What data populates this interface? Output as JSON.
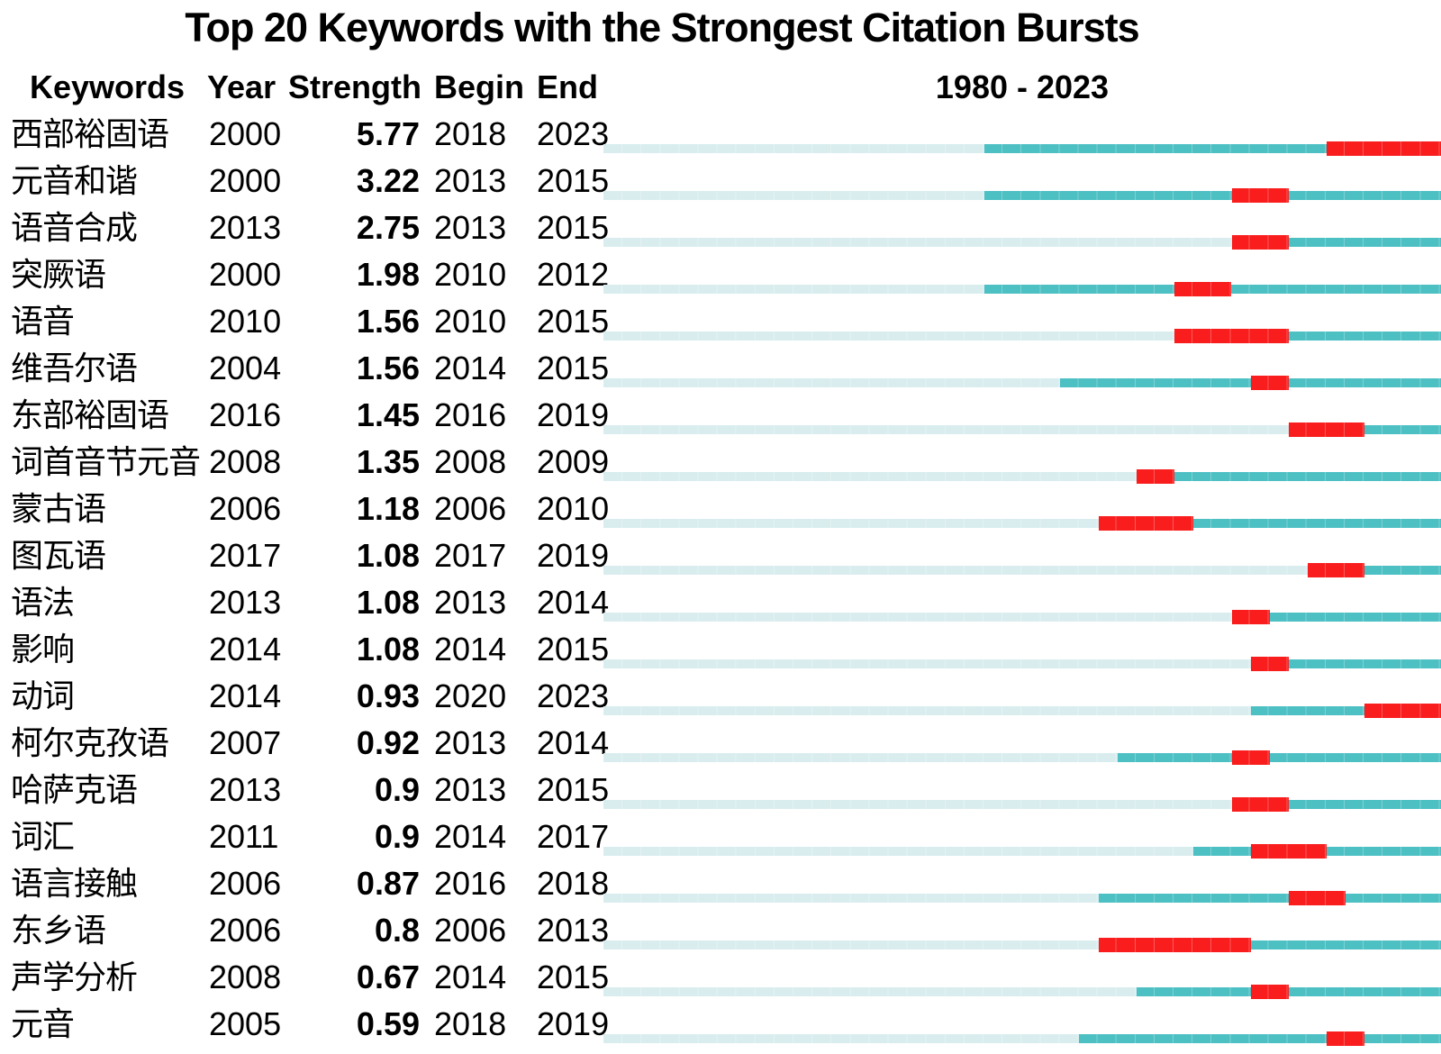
{
  "title": "Top 20 Keywords with the Strongest Citation Bursts",
  "header": {
    "keywords": "Keywords",
    "year": "Year",
    "strength": "Strength",
    "begin": "Begin",
    "end": "End",
    "period": "1980 - 2023"
  },
  "chart_data": {
    "type": "table",
    "subtype": "citation-burst-timeline",
    "title": "Top 20 Keywords with the Strongest Citation Bursts",
    "columns": [
      "Keywords",
      "Year",
      "Strength",
      "Begin",
      "End"
    ],
    "timeline": {
      "label": "1980 - 2023",
      "axis_start": 1980,
      "axis_end": 2023
    },
    "colors": {
      "pre_period": "#d9edef",
      "active_period": "#4dc0c4",
      "burst_period": "#f91d1d"
    },
    "rows": [
      {
        "keyword": "西部裕固语",
        "year": "2000",
        "strength": "5.77",
        "begin": "2018",
        "end": "2023"
      },
      {
        "keyword": "元音和谐",
        "year": "2000",
        "strength": "3.22",
        "begin": "2013",
        "end": "2015"
      },
      {
        "keyword": "语音合成",
        "year": "2013",
        "strength": "2.75",
        "begin": "2013",
        "end": "2015"
      },
      {
        "keyword": "突厥语",
        "year": "2000",
        "strength": "1.98",
        "begin": "2010",
        "end": "2012"
      },
      {
        "keyword": "语音",
        "year": "2010",
        "strength": "1.56",
        "begin": "2010",
        "end": "2015"
      },
      {
        "keyword": "维吾尔语",
        "year": "2004",
        "strength": "1.56",
        "begin": "2014",
        "end": "2015"
      },
      {
        "keyword": "东部裕固语",
        "year": "2016",
        "strength": "1.45",
        "begin": "2016",
        "end": "2019"
      },
      {
        "keyword": "词首音节元音",
        "year": "2008",
        "strength": "1.35",
        "begin": "2008",
        "end": "2009"
      },
      {
        "keyword": "蒙古语",
        "year": "2006",
        "strength": "1.18",
        "begin": "2006",
        "end": "2010"
      },
      {
        "keyword": "图瓦语",
        "year": "2017",
        "strength": "1.08",
        "begin": "2017",
        "end": "2019"
      },
      {
        "keyword": "语法",
        "year": "2013",
        "strength": "1.08",
        "begin": "2013",
        "end": "2014"
      },
      {
        "keyword": "影响",
        "year": "2014",
        "strength": "1.08",
        "begin": "2014",
        "end": "2015"
      },
      {
        "keyword": "动词",
        "year": "2014",
        "strength": "0.93",
        "begin": "2020",
        "end": "2023"
      },
      {
        "keyword": "柯尔克孜语",
        "year": "2007",
        "strength": "0.92",
        "begin": "2013",
        "end": "2014"
      },
      {
        "keyword": "哈萨克语",
        "year": "2013",
        "strength": "0.9",
        "begin": "2013",
        "end": "2015"
      },
      {
        "keyword": "词汇",
        "year": "2011",
        "strength": "0.9",
        "begin": "2014",
        "end": "2017"
      },
      {
        "keyword": "语言接触",
        "year": "2006",
        "strength": "0.87",
        "begin": "2016",
        "end": "2018"
      },
      {
        "keyword": "东乡语",
        "year": "2006",
        "strength": "0.8",
        "begin": "2006",
        "end": "2013"
      },
      {
        "keyword": "声学分析",
        "year": "2008",
        "strength": "0.67",
        "begin": "2014",
        "end": "2015"
      },
      {
        "keyword": "元音",
        "year": "2005",
        "strength": "0.59",
        "begin": "2018",
        "end": "2019"
      }
    ]
  }
}
